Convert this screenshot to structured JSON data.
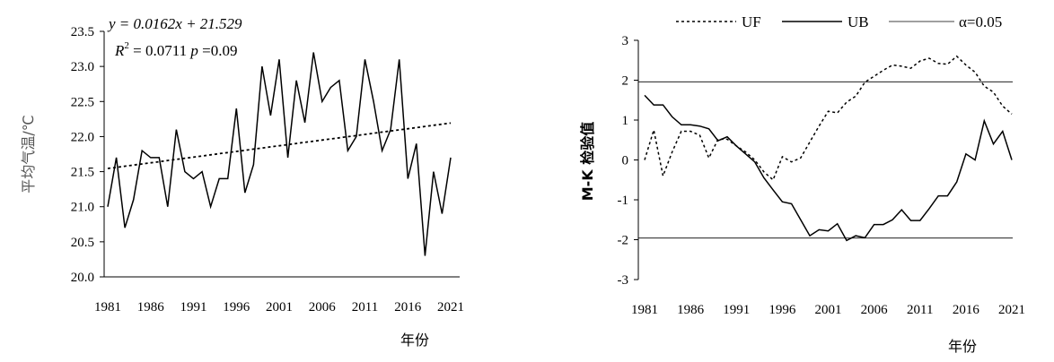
{
  "chart_data": [
    {
      "type": "line",
      "xlabel": "年份",
      "ylabel": "平均气温/℃",
      "ylim": [
        20.0,
        23.5
      ],
      "xlim": [
        1981,
        2021
      ],
      "xticks": [
        "1981",
        "1986",
        "1991",
        "1996",
        "2001",
        "2006",
        "2011",
        "2016",
        "2021"
      ],
      "yticks": [
        "20.0",
        "20.5",
        "21.0",
        "21.5",
        "22.0",
        "22.5",
        "23.0",
        "23.5"
      ],
      "grid": false,
      "x": [
        1981,
        1982,
        1983,
        1984,
        1985,
        1986,
        1987,
        1988,
        1989,
        1990,
        1991,
        1992,
        1993,
        1994,
        1995,
        1996,
        1997,
        1998,
        1999,
        2000,
        2001,
        2002,
        2003,
        2004,
        2005,
        2006,
        2007,
        2008,
        2009,
        2010,
        2011,
        2012,
        2013,
        2014,
        2015,
        2016,
        2017,
        2018,
        2019,
        2020,
        2021
      ],
      "series": [
        {
          "style": "solid",
          "values": [
            21.0,
            21.7,
            20.7,
            21.1,
            21.8,
            21.7,
            21.7,
            21.0,
            22.1,
            21.5,
            21.4,
            21.5,
            21.0,
            21.4,
            21.4,
            22.4,
            21.2,
            21.6,
            23.0,
            22.3,
            23.1,
            21.7,
            22.8,
            22.2,
            23.2,
            22.5,
            22.7,
            22.8,
            21.8,
            22.0,
            23.1,
            22.5,
            21.8,
            22.1,
            23.1,
            21.4,
            21.9,
            20.3,
            21.5,
            20.9,
            21.7
          ]
        },
        {
          "style": "dotted-trend",
          "values": [
            21.545,
            21.561,
            21.578,
            21.594,
            21.61,
            21.626,
            21.642,
            21.659,
            21.675,
            21.691,
            21.707,
            21.723,
            21.74,
            21.756,
            21.772,
            21.788,
            21.804,
            21.821,
            21.837,
            21.853,
            21.869,
            21.885,
            21.902,
            21.918,
            21.934,
            21.95,
            21.966,
            21.983,
            21.999,
            22.015,
            22.031,
            22.047,
            22.064,
            22.08,
            22.096,
            22.112,
            22.128,
            22.145,
            22.161,
            22.177,
            22.193
          ]
        }
      ],
      "annotations": {
        "equation": "y = 0.0162x + 21.529",
        "r2_label": "R",
        "r2_sup": "2",
        "r2_value": " = 0.0711 ",
        "p_label": "p",
        "p_value": " =0.09"
      }
    },
    {
      "type": "line",
      "xlabel": "年份",
      "ylabel": "M-K 检验值",
      "ylim": [
        -3,
        3
      ],
      "xlim": [
        1981,
        2021
      ],
      "xticks": [
        "1981",
        "1986",
        "1991",
        "1996",
        "2001",
        "2006",
        "2011",
        "2016",
        "2021"
      ],
      "yticks": [
        "-3",
        "-2",
        "-1",
        "0",
        "1",
        "2",
        "3"
      ],
      "grid": false,
      "legend_placement": "top",
      "x": [
        1981,
        1982,
        1983,
        1984,
        1985,
        1986,
        1987,
        1988,
        1989,
        1990,
        1991,
        1992,
        1993,
        1994,
        1995,
        1996,
        1997,
        1998,
        1999,
        2000,
        2001,
        2002,
        2003,
        2004,
        2005,
        2006,
        2007,
        2008,
        2009,
        2010,
        2011,
        2012,
        2013,
        2014,
        2015,
        2016,
        2017,
        2018,
        2019,
        2020,
        2021
      ],
      "series": [
        {
          "name": "UF",
          "style": "dotted",
          "values": [
            0.0,
            0.75,
            -0.4,
            0.2,
            0.72,
            0.72,
            0.62,
            0.05,
            0.52,
            0.52,
            0.35,
            0.2,
            0.0,
            -0.3,
            -0.5,
            0.08,
            -0.05,
            0.05,
            0.45,
            0.85,
            1.22,
            1.18,
            1.45,
            1.6,
            1.95,
            2.1,
            2.25,
            2.38,
            2.35,
            2.3,
            2.48,
            2.55,
            2.42,
            2.4,
            2.6,
            2.38,
            2.2,
            1.85,
            1.7,
            1.35,
            1.15
          ]
        },
        {
          "name": "UB",
          "style": "solid",
          "values": [
            1.62,
            1.38,
            1.38,
            1.08,
            0.88,
            0.88,
            0.85,
            0.78,
            0.48,
            0.58,
            0.35,
            0.15,
            -0.05,
            -0.45,
            -0.75,
            -1.05,
            -1.1,
            -1.5,
            -1.9,
            -1.75,
            -1.78,
            -1.6,
            -2.02,
            -1.9,
            -1.95,
            -1.62,
            -1.62,
            -1.5,
            -1.25,
            -1.52,
            -1.52,
            -1.22,
            -0.9,
            -0.9,
            -0.55,
            0.15,
            0.0,
            0.98,
            0.4,
            0.72,
            0.0
          ]
        }
      ],
      "reference_lines": {
        "name": "α=0.05",
        "values": [
          1.96,
          -1.96
        ]
      }
    }
  ]
}
